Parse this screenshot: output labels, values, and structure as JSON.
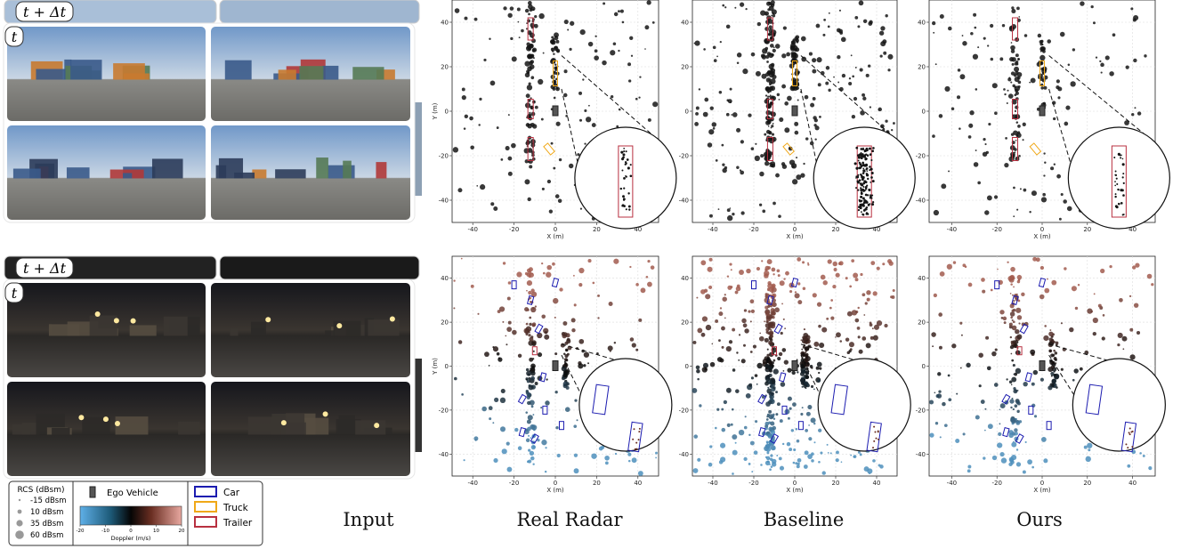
{
  "input": {
    "later_label": "t + Δt",
    "current_label": "t"
  },
  "columns": [
    "Input",
    "Real Radar",
    "Baseline",
    "Ours"
  ],
  "plot_axes": {
    "xlabel": "X (m)",
    "ylabel": "Y (m)",
    "xlim": [
      -50,
      50
    ],
    "ylim": [
      -50,
      50
    ],
    "xticks": [
      -40,
      -20,
      0,
      20,
      40
    ],
    "yticks": [
      40,
      20,
      0,
      -20,
      -40
    ]
  },
  "legend": {
    "rcs_title": "RCS (dBsm)",
    "rcs_entries": [
      "-15 dBsm",
      "10 dBsm",
      "35 dBsm",
      "60 dBsm"
    ],
    "ego": "Ego Vehicle",
    "colorbar_label": "Doppler (m/s)",
    "colorbar_ticks": [
      -20,
      -10,
      0,
      10,
      20
    ],
    "boxes": [
      {
        "label": "Car",
        "color": "#1c1cb0"
      },
      {
        "label": "Truck",
        "color": "#f0a818"
      },
      {
        "label": "Trailer",
        "color": "#b83040"
      }
    ]
  }
}
